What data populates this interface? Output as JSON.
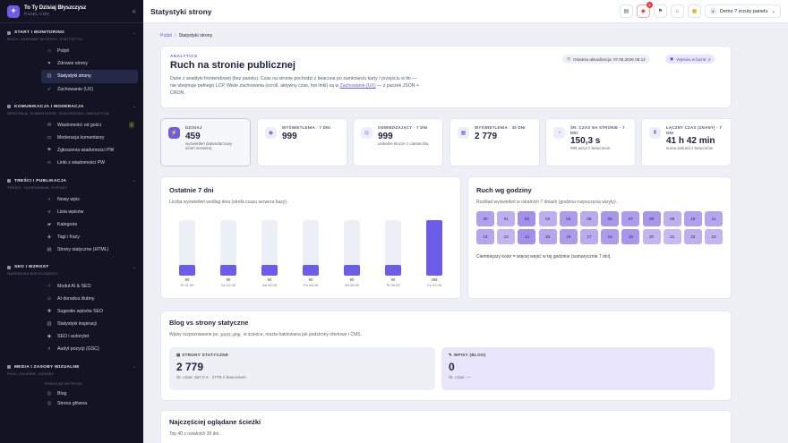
{
  "brand": {
    "title": "To Ty Dzisiaj Błyszczysz",
    "subtitle": "PANEL CMS"
  },
  "sidebar": {
    "sections": [
      {
        "title": "START I MONITORING",
        "subtitle": "RUCH, ZDROWIE WITRYNY, STATYSTYKI",
        "items": [
          {
            "label": "Pulpit",
            "icon": "home-icon"
          },
          {
            "label": "Zdrowie strony",
            "icon": "heart-icon"
          },
          {
            "label": "Statystyki strony",
            "icon": "chart-icon",
            "active": true
          },
          {
            "label": "Zachowanie (UX)",
            "icon": "cursor-icon"
          }
        ]
      },
      {
        "title": "KOMUNIKACJA I MODERACJA",
        "subtitle": "SKRZYNKA, KOMENTARZE, ZGŁOSZENIA I NADUŻYCIA",
        "items": [
          {
            "label": "Wiadomości od gości",
            "icon": "mail-icon",
            "badge": "0"
          },
          {
            "label": "Moderacja komentarzy",
            "icon": "comment-icon"
          },
          {
            "label": "Zgłoszenia wiadomości PW",
            "icon": "flag-icon"
          },
          {
            "label": "Linki z wiadomości PW",
            "icon": "link-icon"
          }
        ]
      },
      {
        "title": "TREŚCI I PUBLIKACJA",
        "subtitle": "TREŚCI, TAKSONOMIA, STRONY",
        "items": [
          {
            "label": "Nowy wpis",
            "icon": "plus-icon"
          },
          {
            "label": "Lista wpisów",
            "icon": "list-icon"
          },
          {
            "label": "Kategorie",
            "icon": "folder-icon"
          },
          {
            "label": "Tagi i frazy",
            "icon": "tag-icon"
          },
          {
            "label": "Strony statyczne (HTML)",
            "icon": "file-icon"
          }
        ]
      },
      {
        "title": "SEO I WZROST",
        "subtitle": "NARZĘDZIA WIDOCZNOŚCI",
        "items": [
          {
            "label": "Moduł AI & SEO",
            "icon": "sparkle-icon"
          },
          {
            "label": "AI doradca ślubny",
            "icon": "bot-icon"
          },
          {
            "label": "Sugestie wpisów SEO",
            "icon": "bulb-icon"
          },
          {
            "label": "Statystyki inspiracji",
            "icon": "chart-icon"
          },
          {
            "label": "SEO i autorytet",
            "icon": "shield-icon"
          },
          {
            "label": "Audyt pozycji (GSC)",
            "icon": "search-icon"
          }
        ]
      },
      {
        "title": "MEDIA I ZASOBY WIZUALNE",
        "subtitle": "PLIKI, GALERIE, ZASOBY",
        "items": []
      }
    ],
    "preview": {
      "label": "PODGLĄD WITRYNY",
      "links": [
        {
          "label": "Blog",
          "icon": "globe-icon"
        },
        {
          "label": "Strona główna",
          "icon": "globe-icon"
        }
      ]
    }
  },
  "topbar": {
    "title": "Statystyki strony",
    "notif_count": "6",
    "user": "Demo ? zrzuty panelu"
  },
  "breadcrumb": {
    "root": "Pulpit",
    "current": "Statystyki strony"
  },
  "hero": {
    "eyebrow": "ANALYTICS",
    "title": "Ruch na stronie publicznej",
    "text_a": "Dane z analityki frontendowej (bez panelu). Czas na stronie pochodzi z beacona po zamknięciu karty / przejściu w tło — nie obejmuje pełnego LCP. Wiele zachowania (scroll, aktywny czas, hot linki) są w ",
    "link": "Zachowanie (UX)",
    "text_b": " — z paczek JSON + CRON.",
    "updated": "Ostatnia aktualizacja: 07.05.2026 06:12",
    "entries": "Wpisów w bazie: 2"
  },
  "stats": [
    {
      "label": "DZISIAJ",
      "value": "459",
      "sub": "wyświetleń (kalendarzowy dzień serwera)",
      "icon": "bolt-icon"
    },
    {
      "label": "WYŚWIETLENIA · 7 DNI",
      "value": "999",
      "sub": "",
      "icon": "eye-icon"
    },
    {
      "label": "ODWIEDZAJĄCY · 7 DNI",
      "value": "999",
      "sub": "unikalne klucze z ciasteczka",
      "icon": "fingerprint-icon"
    },
    {
      "label": "WYŚWIETLENIA · 30 DNI",
      "value": "2 779",
      "sub": "",
      "icon": "calendar-icon"
    },
    {
      "label": "ŚR. CZAS NA STRONIE · 7 DNI",
      "value": "150,3 s",
      "sub": "999 wizyt z beaconem",
      "icon": "timer-icon"
    },
    {
      "label": "ŁĄCZNY CZAS (ZNANY) · 7 DNI",
      "value": "41 h 42 min",
      "sub": "suma sekund z beaconów",
      "icon": "hourglass-icon"
    }
  ],
  "week": {
    "title": "Ostatnie 7 dni",
    "subtitle": "Liczba wyświetleń według dnia (strefa czasu serwera bazy)."
  },
  "chart_data": {
    "type": "bar",
    "categories": [
      "Pt 01.05",
      "So 02.05",
      "Nd 03.05",
      "Pn 04.05",
      "Wt 05.05",
      "Śr 06.05",
      "Cz 07.05"
    ],
    "values": [
      90,
      90,
      90,
      90,
      90,
      90,
      459
    ],
    "ylim": [
      0,
      459
    ],
    "value_labels": [
      "90",
      "90",
      "90",
      "90",
      "90",
      "90",
      "459"
    ]
  },
  "hours": {
    "title": "Ruch wg godziny",
    "subtitle": "Rozkład wyświetleń w ostatnich 7 dniach (godzina rozpoczęcia wizyty).",
    "labels": [
      "00",
      "01",
      "02",
      "03",
      "04",
      "05",
      "06",
      "07",
      "08",
      "09",
      "10",
      "11",
      "12",
      "13",
      "14",
      "15",
      "16",
      "17",
      "18",
      "19",
      "20",
      "21",
      "22",
      "23"
    ],
    "levels": [
      0.7,
      0.55,
      0.85,
      0.55,
      0.75,
      0.6,
      0.8,
      0.75,
      0.8,
      0.55,
      0.7,
      0.65,
      0.65,
      0.5,
      0.85,
      0.65,
      0.75,
      0.6,
      0.75,
      0.8,
      0.5,
      0.45,
      0.55,
      0.5
    ],
    "note": "Ciemniejszy kolor = więcej wejść w tej godzinie (sumarycznie 7 dni)."
  },
  "blog": {
    "title": "Blog vs strony statyczne",
    "desc_a": "Wpisy rozpoznawane po ",
    "code": "post.php",
    "desc_b": " w ścieżce, reszta traktowana jak podstrony ofertowe i CMS.",
    "static_label": "STRONY STATYCZNE",
    "static_value": "2 779",
    "static_sub": "Śr. czas: 157,0 s · 2779 z beaconem",
    "blog_label": "WPISY (BLOG)",
    "blog_value": "0",
    "blog_sub": "Śr. czas: —"
  },
  "paths": {
    "title": "Najczęściej oglądane ścieżki",
    "subtitle": "Top 40 z ostatnich 30 dni."
  },
  "colors": {
    "accent": "#6c5ce7",
    "sidebar": "#121424"
  }
}
